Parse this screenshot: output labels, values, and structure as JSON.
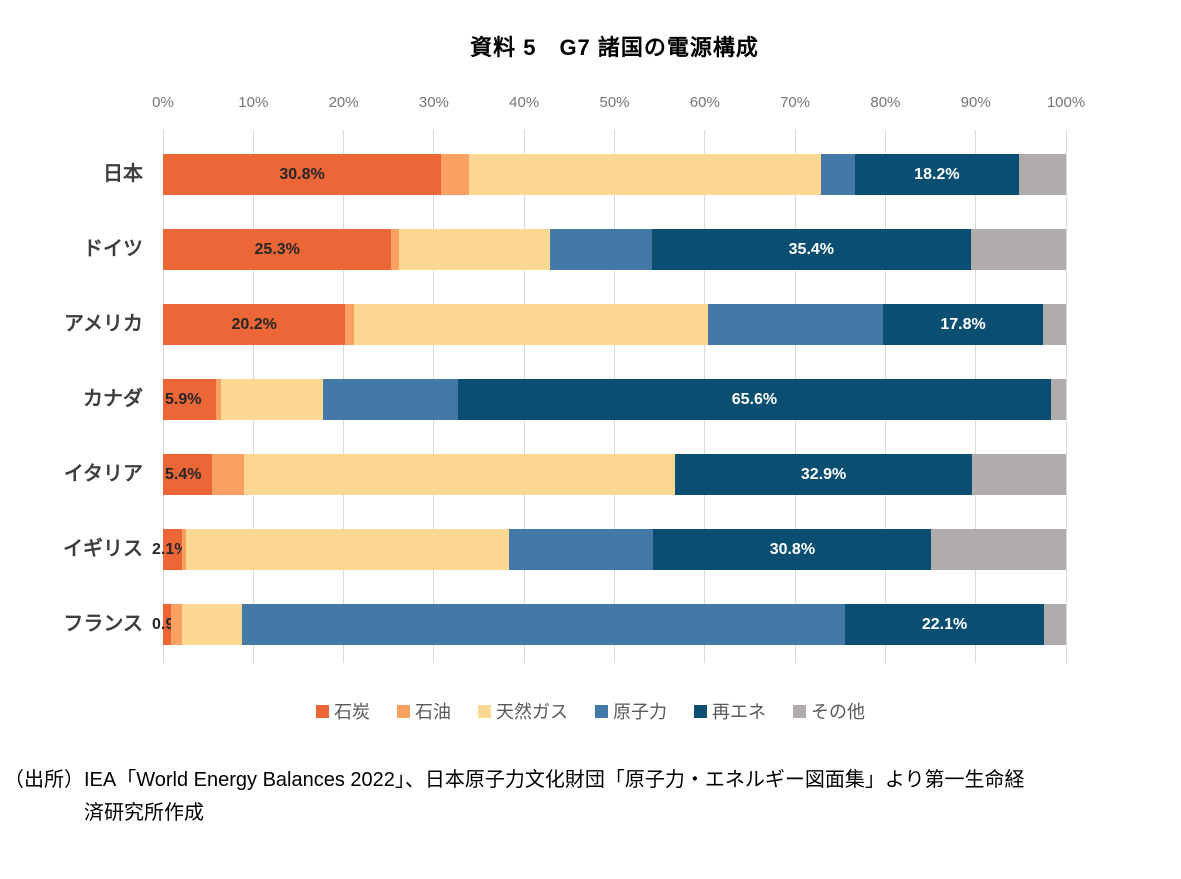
{
  "chart_data": {
    "type": "bar",
    "orientation": "horizontal",
    "stacked": true,
    "title": "資料 5　G7 諸国の電源構成",
    "categories": [
      "日本",
      "ドイツ",
      "アメリカ",
      "カナダ",
      "イタリア",
      "イギリス",
      "フランス"
    ],
    "series": [
      {
        "key": "coal",
        "name": "石炭",
        "color": "#ED6637",
        "values": [
          30.8,
          25.3,
          20.2,
          5.9,
          5.4,
          2.1,
          0.9
        ],
        "labels": [
          "30.8%",
          "25.3%",
          "20.2%",
          "5.9%",
          "5.4%",
          "2.1%",
          "0.9%"
        ]
      },
      {
        "key": "oil",
        "name": "石油",
        "color": "#FBA263",
        "values": [
          3.1,
          0.8,
          0.9,
          0.5,
          3.6,
          0.5,
          1.2
        ]
      },
      {
        "key": "gas",
        "name": "天然ガス",
        "color": "#FDD893",
        "values": [
          39.0,
          16.8,
          39.3,
          11.3,
          47.7,
          35.7,
          6.7
        ]
      },
      {
        "key": "nuclear",
        "name": "原子力",
        "color": "#4478A6",
        "values": [
          3.7,
          11.2,
          19.3,
          15.0,
          0.0,
          16.0,
          66.7
        ]
      },
      {
        "key": "renewables",
        "name": "再エネ",
        "color": "#0A4F72",
        "values": [
          18.2,
          35.4,
          17.8,
          65.6,
          32.9,
          30.8,
          22.1
        ],
        "labels": [
          "18.2%",
          "35.4%",
          "17.8%",
          "65.6%",
          "32.9%",
          "30.8%",
          "22.1%"
        ]
      },
      {
        "key": "other",
        "name": "その他",
        "color": "#AFACAB",
        "values": [
          5.2,
          10.5,
          2.5,
          1.7,
          10.4,
          14.9,
          2.4
        ]
      }
    ],
    "x_ticks": [
      "0%",
      "10%",
      "20%",
      "30%",
      "40%",
      "50%",
      "60%",
      "70%",
      "80%",
      "90%",
      "100%"
    ],
    "xlim": [
      0,
      100
    ],
    "grid": "vertical",
    "legend_position": "bottom",
    "gridline_color": "#D9D9D9"
  },
  "source": {
    "line1": "（出所）IEA「World Energy Balances 2022」、日本原子力文化財団「原子力・エネルギー図面集」より第一生命経",
    "line2": "済研究所作成"
  }
}
